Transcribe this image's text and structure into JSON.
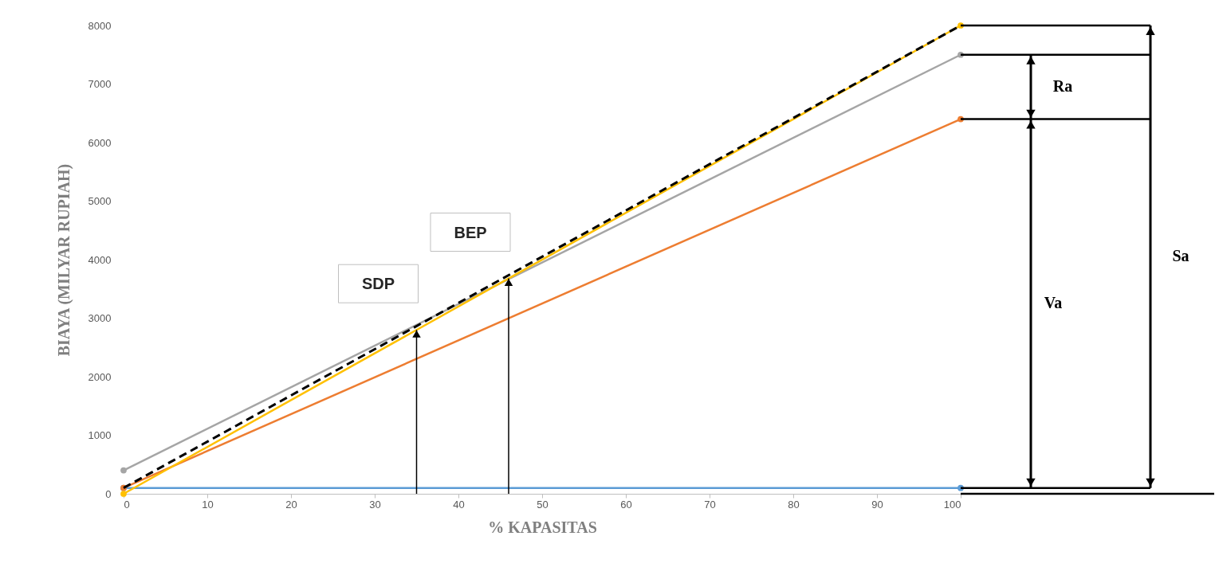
{
  "chart_data": {
    "type": "line",
    "xlabel": "% KAPASITAS",
    "ylabel": "BIAYA (MILYAR RUPIAH)",
    "x": [
      0,
      100
    ],
    "series": [
      {
        "color": "#5b9bd5",
        "values": [
          100,
          100
        ]
      },
      {
        "color": "#ed7d31",
        "values": [
          100,
          6400
        ]
      },
      {
        "color": "#a5a5a5",
        "values": [
          400,
          7500
        ]
      },
      {
        "color": "#ffc000",
        "values": [
          0,
          8000
        ]
      },
      {
        "color": "#000000",
        "values": [
          100,
          8000
        ],
        "line_style": "dashed",
        "marker": "none"
      }
    ],
    "xlim": [
      0,
      100
    ],
    "xticks": [
      0,
      10,
      20,
      30,
      40,
      50,
      60,
      70,
      80,
      90,
      100
    ],
    "ylim": [
      0,
      8000
    ],
    "yticks": [
      0,
      1000,
      2000,
      3000,
      4000,
      5000,
      6000,
      7000,
      8000
    ],
    "grid": false,
    "marker": "circle",
    "line_style": "solid",
    "annotations": [
      {
        "text": "SDP",
        "x": 35,
        "y": 2800
      },
      {
        "text": "BEP",
        "x": 46,
        "y": 3680
      },
      "Ra",
      "Va",
      "Sa"
    ]
  }
}
